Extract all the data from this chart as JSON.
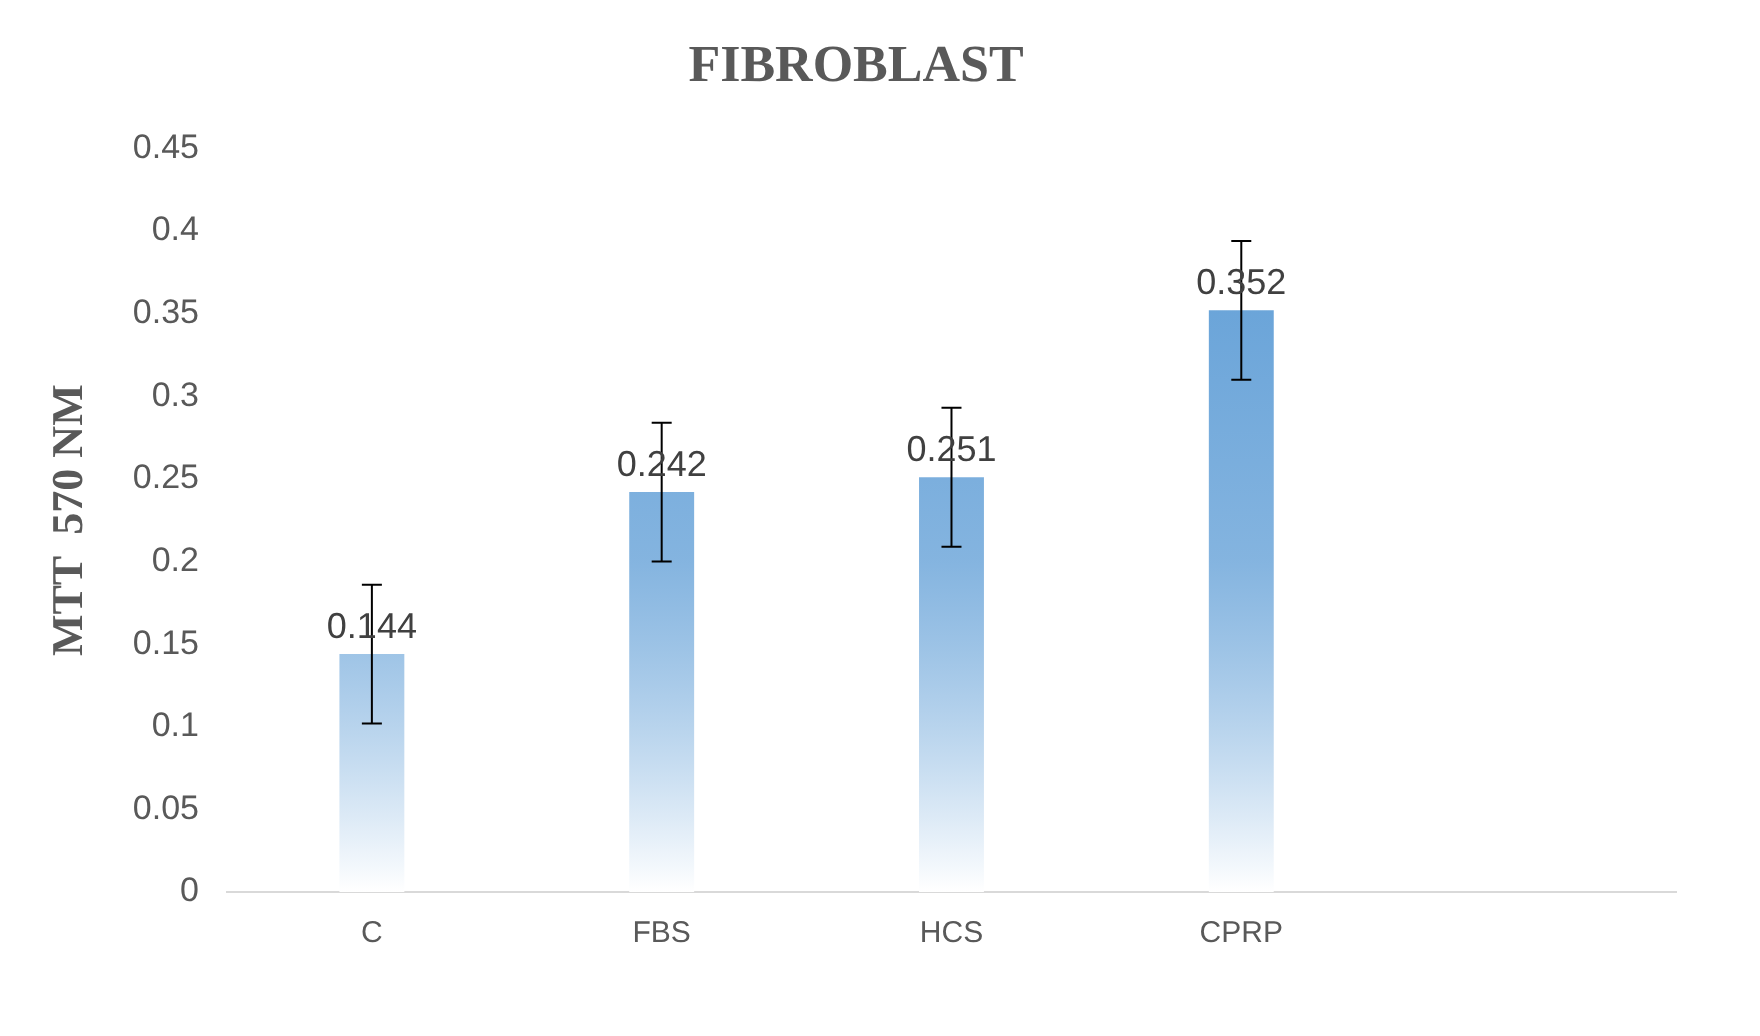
{
  "chart_data": {
    "type": "bar",
    "title": "FIBROBLAST",
    "ylabel": "MTT  570 NM",
    "categories": [
      "C",
      "FBS",
      "HCS",
      "CPRP",
      null
    ],
    "values": [
      0.144,
      0.242,
      0.251,
      0.352,
      null
    ],
    "errors": [
      0.042,
      0.042,
      0.042,
      0.042,
      null
    ],
    "color": "#5b9bd5",
    "ylim": [
      0,
      0.45
    ],
    "yticks": [
      0,
      0.05,
      0.1,
      0.15,
      0.2,
      0.25,
      0.3,
      0.35,
      0.4,
      0.45
    ],
    "data_labels": true,
    "grid": false,
    "legend": false
  }
}
